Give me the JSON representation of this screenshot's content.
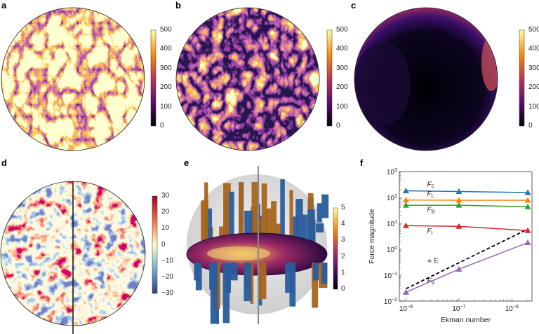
{
  "panels": {
    "a": {
      "label": "a",
      "colorbar_ticks": [
        "500",
        "400",
        "300",
        "200",
        "100",
        "0"
      ]
    },
    "b": {
      "label": "b",
      "colorbar_ticks": [
        "500",
        "400",
        "300",
        "200",
        "100",
        "0"
      ]
    },
    "c": {
      "label": "c",
      "colorbar_ticks": [
        "500",
        "400",
        "300",
        "200",
        "100",
        "0"
      ]
    },
    "d": {
      "label": "d",
      "colorbar_ticks": [
        "30",
        "20",
        "10",
        "0",
        "−10",
        "−20",
        "−30"
      ]
    },
    "e": {
      "label": "e",
      "colorbar_ticks": [
        "5",
        "4",
        "3",
        "2",
        "1",
        "0"
      ]
    },
    "f": {
      "label": "f"
    }
  },
  "colors": {
    "inferno": [
      "#000004",
      "#57106e",
      "#bc3754",
      "#f98e09",
      "#fcffa4"
    ],
    "rdylbu": [
      "#313695",
      "#74add1",
      "#ffffbf",
      "#f46d43",
      "#a50026"
    ]
  },
  "chart_data": {
    "type": "line",
    "xlabel": "Ekman number",
    "ylabel": "Force magnitude",
    "xscale": "log",
    "yscale": "log",
    "xlim": [
      7.5e-09,
      2.4e-06
    ],
    "ylim": [
      0.01,
      1000
    ],
    "x": [
      1e-08,
      1e-07,
      2e-06
    ],
    "xticks": [
      {
        "v": 1e-08,
        "base": "10",
        "exp": "−8"
      },
      {
        "v": 1e-07,
        "base": "10",
        "exp": "−7"
      },
      {
        "v": 1e-06,
        "base": "10",
        "exp": "−6"
      }
    ],
    "yticks": [
      {
        "v": 0.01,
        "base": "10",
        "exp": "−2"
      },
      {
        "v": 0.1,
        "base": "10",
        "exp": "−1"
      },
      {
        "v": 1,
        "base": "10",
        "exp": "0"
      },
      {
        "v": 10,
        "base": "10",
        "exp": "1"
      },
      {
        "v": 100,
        "base": "10",
        "exp": "2"
      },
      {
        "v": 1000,
        "base": "10",
        "exp": "3"
      }
    ],
    "series": [
      {
        "name": "F",
        "sub": "C",
        "color": "#1f77b4",
        "values": [
          180,
          170,
          155
        ],
        "label_at": [
          2.5e-08,
          260
        ]
      },
      {
        "name": "F",
        "sub": "L",
        "color": "#ff7f0e",
        "values": [
          80,
          78,
          78
        ],
        "label_at": [
          2.5e-08,
          115
        ]
      },
      {
        "name": "F",
        "sub": "B",
        "color": "#2ca02c",
        "values": [
          50,
          50,
          44
        ],
        "label_at": [
          2.5e-08,
          28
        ]
      },
      {
        "name": "F",
        "sub": "I",
        "color": "#d62728",
        "values": [
          8.2,
          7.7,
          5.3
        ],
        "label_at": [
          2.5e-08,
          4.2
        ]
      },
      {
        "name": "F",
        "sub": "V",
        "color": "#9467bd",
        "values": [
          0.022,
          0.17,
          1.8
        ],
        "label_at": [
          2.5e-08,
          0.05
        ]
      }
    ],
    "reference_line": {
      "label": "∝ E",
      "x": [
        1e-08,
        2e-06
      ],
      "y": [
        0.03,
        6
      ],
      "color": "#000000",
      "label_at": [
        2.5e-08,
        0.3
      ]
    }
  }
}
